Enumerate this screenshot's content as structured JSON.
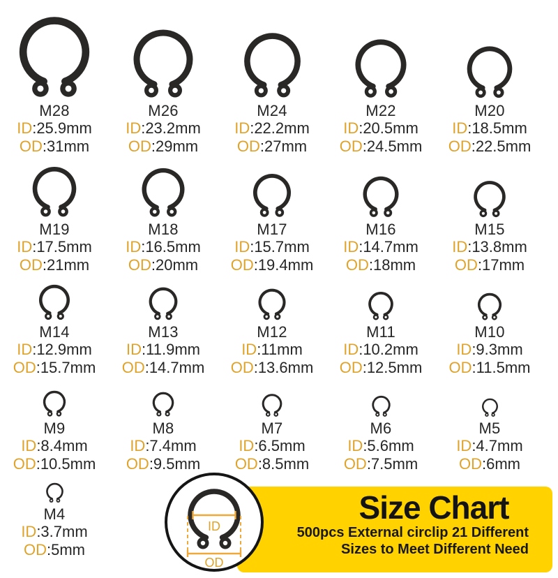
{
  "colors": {
    "accent_gold": "#DFA32B",
    "banner_yellow": "#FFD200",
    "ring_dark": "#2a2727",
    "text_dark": "#262626",
    "line_orange": "#EFA93B"
  },
  "dim_prefix": {
    "id": "ID",
    "od": "OD"
  },
  "items": [
    {
      "name": "M28",
      "id": ":25.9mm",
      "od": ":31mm",
      "px": 118
    },
    {
      "name": "M26",
      "id": ":23.2mm",
      "od": ":29mm",
      "px": 100
    },
    {
      "name": "M24",
      "id": ":22.2mm",
      "od": ":27mm",
      "px": 95
    },
    {
      "name": "M22",
      "id": ":20.5mm",
      "od": ":24.5mm",
      "px": 86
    },
    {
      "name": "M20",
      "id": ":18.5mm",
      "od": ":22.5mm",
      "px": 76
    },
    {
      "name": "M19",
      "id": ":17.5mm",
      "od": ":21mm",
      "px": 74
    },
    {
      "name": "M18",
      "id": ":16.5mm",
      "od": ":20mm",
      "px": 72
    },
    {
      "name": "M17",
      "id": ":15.7mm",
      "od": ":19.4mm",
      "px": 64
    },
    {
      "name": "M16",
      "id": ":14.7mm",
      "od": ":18mm",
      "px": 60
    },
    {
      "name": "M15",
      "id": ":13.8mm",
      "od": ":17mm",
      "px": 54
    },
    {
      "name": "M14",
      "id": ":12.9mm",
      "od": ":15.7mm",
      "px": 52
    },
    {
      "name": "M13",
      "id": ":11.9mm",
      "od": ":14.7mm",
      "px": 48
    },
    {
      "name": "M12",
      "id": ":11mm",
      "od": ":13.6mm",
      "px": 46
    },
    {
      "name": "M11",
      "id": ":10.2mm",
      "od": ":12.5mm",
      "px": 42
    },
    {
      "name": "M10",
      "id": ":9.3mm",
      "od": ":11.5mm",
      "px": 40
    },
    {
      "name": "M9",
      "id": ":8.4mm",
      "od": ":10.5mm",
      "px": 38
    },
    {
      "name": "M8",
      "id": ":7.4mm",
      "od": ":9.5mm",
      "px": 36
    },
    {
      "name": "M7",
      "id": ":6.5mm",
      "od": ":8.5mm",
      "px": 34
    },
    {
      "name": "M6",
      "id": ":5.6mm",
      "od": ":7.5mm",
      "px": 31
    },
    {
      "name": "M5",
      "id": ":4.7mm",
      "od": ":6mm",
      "px": 27
    },
    {
      "name": "M4",
      "id": ":3.7mm",
      "od": ":5mm",
      "px": 29
    }
  ],
  "row_ring_heights": [
    146,
    90,
    68,
    56,
    44
  ],
  "banner": {
    "title": "Size Chart",
    "line1": "500pcs External circlip 21 Different",
    "line2": "Sizes to Meet Different Need"
  },
  "diagram": {
    "id": "ID",
    "od": "OD"
  }
}
